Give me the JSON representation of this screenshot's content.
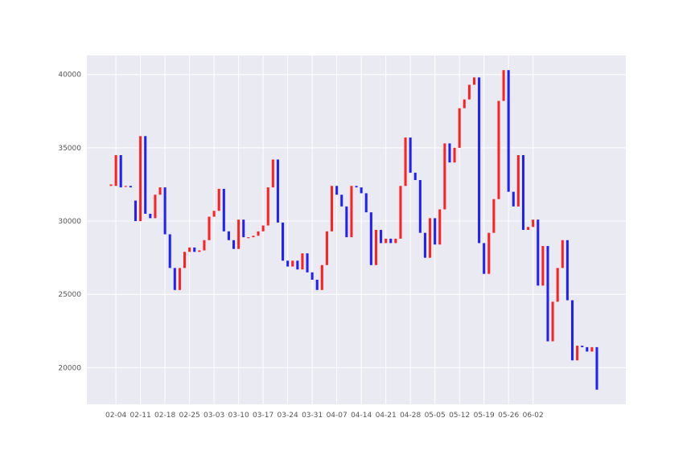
{
  "chart_data": {
    "type": "bar",
    "subtype": "candlestick",
    "title": "",
    "xlabel": "",
    "ylabel": "",
    "ylim": [
      17500,
      41300
    ],
    "yticks": [
      20000,
      25000,
      30000,
      35000,
      40000
    ],
    "xtick_labels": [
      "02-04",
      "02-11",
      "02-18",
      "02-25",
      "03-03",
      "03-10",
      "03-17",
      "03-24",
      "03-31",
      "04-07",
      "04-14",
      "04-21",
      "04-28",
      "05-05",
      "05-12",
      "05-19",
      "05-26",
      "06-02"
    ],
    "xtick_index": [
      1,
      6,
      11,
      16,
      21,
      26,
      31,
      36,
      41,
      46,
      51,
      56,
      61,
      66,
      71,
      76,
      81,
      86
    ],
    "grid": true,
    "background": "#eaeaf2",
    "colors": {
      "up": "#ff2020",
      "down": "#2020ff"
    },
    "series": [
      {
        "open": [
          32400,
          32400,
          34500,
          32400,
          32400,
          31400,
          30000,
          35800,
          30500,
          30200,
          31800,
          32300,
          29100,
          26800,
          25300,
          26800,
          27900,
          28200,
          27900,
          28000,
          28700,
          30300,
          30700,
          32200,
          29300,
          28700,
          28100,
          30100,
          28900,
          28900,
          29000,
          29300,
          29700,
          32300,
          34200,
          29900,
          27300,
          26900,
          27300,
          26700,
          27800,
          26500,
          26000,
          25300,
          27000,
          29300,
          32400,
          31800,
          31000,
          28900,
          32400,
          32300,
          31900,
          30600,
          27000,
          29400,
          28500,
          28800,
          28500,
          28800,
          32400,
          35700,
          33300,
          32800,
          29200,
          27500,
          30200,
          28400,
          30800,
          35300,
          34000,
          35000,
          37700,
          38300,
          39300,
          39800,
          28500,
          26400,
          29200,
          31500,
          38200,
          40300,
          32000,
          31000,
          34500,
          29400,
          29600,
          30100,
          25600,
          28300,
          21800,
          24500,
          26800,
          28700,
          24600,
          20500,
          21500,
          21400,
          21100,
          21400
        ],
        "close": [
          32500,
          34500,
          32300,
          32400,
          32300,
          30000,
          35800,
          30500,
          30200,
          31800,
          32300,
          29100,
          26800,
          25300,
          26800,
          27900,
          28200,
          27900,
          28000,
          28700,
          30300,
          30700,
          32200,
          29300,
          28700,
          28100,
          30100,
          28900,
          28900,
          29000,
          29300,
          29700,
          32300,
          34200,
          29900,
          27300,
          26900,
          27300,
          26700,
          27800,
          26500,
          26000,
          25300,
          27000,
          29300,
          32400,
          31800,
          31000,
          28900,
          32400,
          32300,
          31900,
          30600,
          27000,
          29400,
          28500,
          28800,
          28500,
          28800,
          32400,
          35700,
          33300,
          32800,
          29200,
          27500,
          30200,
          28400,
          30800,
          35300,
          34000,
          35000,
          37700,
          38300,
          39300,
          39800,
          28500,
          26400,
          29200,
          31500,
          38200,
          40300,
          32000,
          31000,
          34500,
          29400,
          29600,
          30100,
          25600,
          28300,
          21800,
          24500,
          26800,
          28700,
          24600,
          20500,
          21500,
          21400,
          21100,
          21400,
          18500
        ]
      }
    ]
  }
}
